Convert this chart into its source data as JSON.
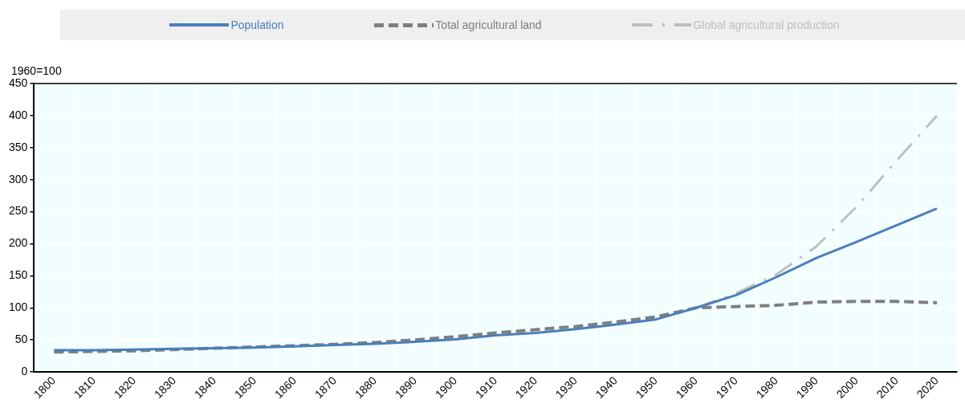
{
  "chart_data": {
    "type": "line",
    "ylabel": "1960=100",
    "categories": [
      "1800",
      "1810",
      "1820",
      "1830",
      "1840",
      "1850",
      "1860",
      "1870",
      "1880",
      "1890",
      "1900",
      "1910",
      "1920",
      "1930",
      "1940",
      "1950",
      "1960",
      "1970",
      "1980",
      "1990",
      "2000",
      "2010",
      "2020"
    ],
    "series": [
      {
        "name": "Population",
        "color": "#4a7ebb",
        "line_style": "solid",
        "values": [
          34,
          34,
          35,
          36,
          37,
          38,
          40,
          42,
          44,
          47,
          51,
          57,
          61,
          67,
          74,
          82,
          100,
          120,
          148,
          178,
          203,
          229,
          255
        ]
      },
      {
        "name": "Total agricultural land",
        "color": "#7f7f7f",
        "line_style": "dashed",
        "values": [
          31,
          32,
          33,
          35,
          37,
          39,
          41,
          43,
          46,
          50,
          55,
          61,
          66,
          71,
          78,
          86,
          100,
          102,
          104,
          109,
          110,
          110,
          108
        ]
      },
      {
        "name": "Global agricultural production",
        "color": "#bfbfbf",
        "line_style": "dashdot",
        "values": [
          null,
          null,
          null,
          null,
          null,
          null,
          null,
          null,
          null,
          null,
          null,
          null,
          null,
          null,
          null,
          null,
          100,
          123,
          152,
          196,
          258,
          330,
          400
        ]
      }
    ],
    "ylim": [
      0,
      450
    ],
    "yticks": [
      0,
      50,
      100,
      150,
      200,
      250,
      300,
      350,
      400,
      450
    ],
    "grid": true,
    "legend": "top",
    "marker": "none"
  }
}
